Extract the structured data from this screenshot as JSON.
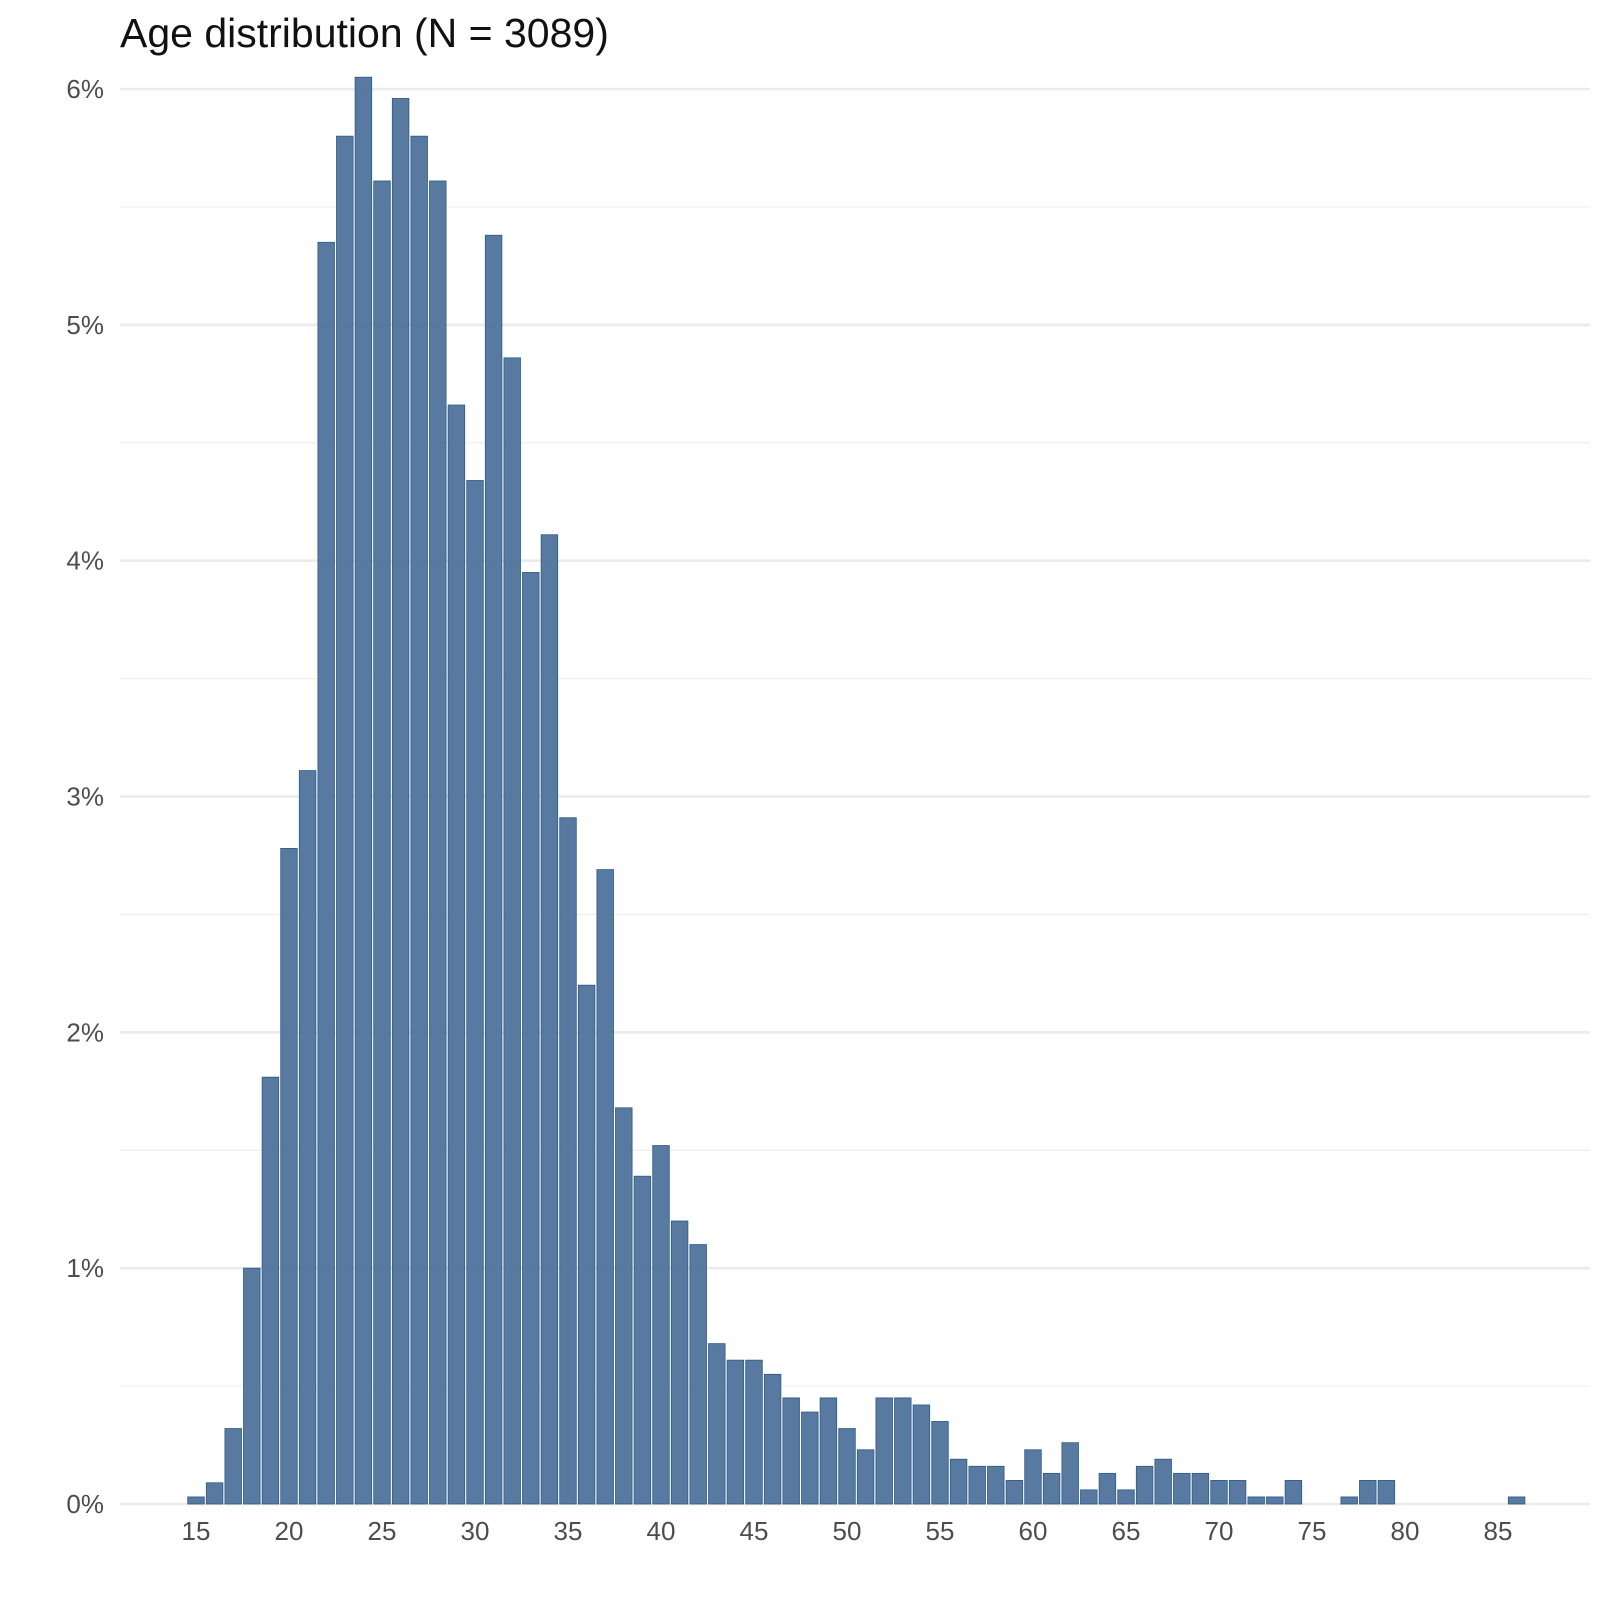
{
  "chart_data": {
    "type": "bar",
    "title": "Age distribution (N = 3089)",
    "xlabel": "",
    "ylabel": "",
    "ylim": [
      0,
      0.0605
    ],
    "xlim": [
      11,
      90
    ],
    "x_ticks": [
      15,
      20,
      25,
      30,
      35,
      40,
      45,
      50,
      55,
      60,
      65,
      70,
      75,
      80,
      85
    ],
    "y_ticks": [
      0,
      0.01,
      0.02,
      0.03,
      0.04,
      0.05,
      0.06
    ],
    "y_tick_labels": [
      "0%",
      "1%",
      "2%",
      "3%",
      "4%",
      "5%",
      "6%"
    ],
    "grid": "horizontal",
    "bar_color": "#4a6f98",
    "x": [
      15,
      16,
      17,
      18,
      19,
      20,
      21,
      22,
      23,
      24,
      25,
      26,
      27,
      28,
      29,
      30,
      31,
      32,
      33,
      34,
      35,
      36,
      37,
      38,
      39,
      40,
      41,
      42,
      43,
      44,
      45,
      46,
      47,
      48,
      49,
      50,
      51,
      52,
      53,
      54,
      55,
      56,
      57,
      58,
      59,
      60,
      61,
      62,
      63,
      64,
      65,
      66,
      67,
      68,
      69,
      70,
      71,
      72,
      73,
      74,
      75,
      76,
      77,
      78,
      79,
      80,
      81,
      82,
      83,
      84,
      85,
      86
    ],
    "values": [
      0.0003,
      0.0009,
      0.0032,
      0.01,
      0.0181,
      0.0278,
      0.0311,
      0.0535,
      0.058,
      0.0605,
      0.0561,
      0.0596,
      0.058,
      0.0561,
      0.0466,
      0.0434,
      0.0538,
      0.0486,
      0.0395,
      0.0411,
      0.0291,
      0.022,
      0.0269,
      0.0168,
      0.0139,
      0.0152,
      0.012,
      0.011,
      0.0068,
      0.0061,
      0.0061,
      0.0055,
      0.0045,
      0.0039,
      0.0045,
      0.0032,
      0.0023,
      0.0045,
      0.0045,
      0.0042,
      0.0035,
      0.0019,
      0.0016,
      0.0016,
      0.001,
      0.0023,
      0.0013,
      0.0026,
      0.0006,
      0.0013,
      0.0006,
      0.0016,
      0.0019,
      0.0013,
      0.0013,
      0.001,
      0.001,
      0.0003,
      0.0003,
      0.001,
      0,
      0,
      0.0003,
      0.001,
      0.001,
      0,
      0,
      0,
      0,
      0,
      0,
      0.0003
    ]
  }
}
